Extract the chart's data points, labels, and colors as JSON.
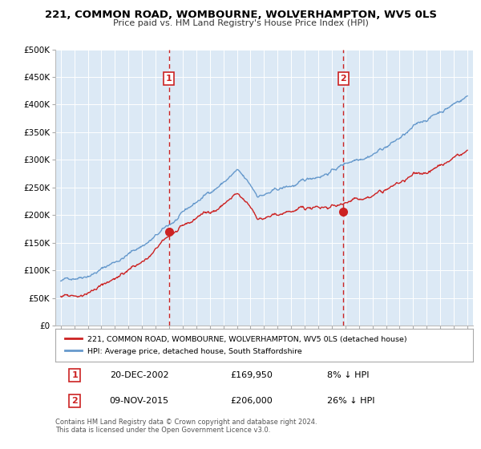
{
  "title": "221, COMMON ROAD, WOMBOURNE, WOLVERHAMPTON, WV5 0LS",
  "subtitle": "Price paid vs. HM Land Registry's House Price Index (HPI)",
  "ylabel_ticks": [
    "£0",
    "£50K",
    "£100K",
    "£150K",
    "£200K",
    "£250K",
    "£300K",
    "£350K",
    "£400K",
    "£450K",
    "£500K"
  ],
  "ytick_values": [
    0,
    50000,
    100000,
    150000,
    200000,
    250000,
    300000,
    350000,
    400000,
    450000,
    500000
  ],
  "ylim": [
    0,
    500000
  ],
  "hpi_color": "#6699cc",
  "price_color": "#cc2222",
  "vline_color": "#cc2222",
  "background_color": "#dce9f5",
  "plot_bg_color": "#dce9f5",
  "grid_color": "white",
  "legend_entry1": "221, COMMON ROAD, WOMBOURNE, WOLVERHAMPTON, WV5 0LS (detached house)",
  "legend_entry2": "HPI: Average price, detached house, South Staffordshire",
  "transaction1_label": "1",
  "transaction1_date": "20-DEC-2002",
  "transaction1_price": "£169,950",
  "transaction1_hpi": "8% ↓ HPI",
  "transaction1_x": 2002.97,
  "transaction1_y": 169950,
  "transaction2_label": "2",
  "transaction2_date": "09-NOV-2015",
  "transaction2_price": "£206,000",
  "transaction2_hpi": "26% ↓ HPI",
  "transaction2_x": 2015.86,
  "transaction2_y": 206000,
  "footer": "Contains HM Land Registry data © Crown copyright and database right 2024.\nThis data is licensed under the Open Government Licence v3.0.",
  "xlim_start": 1994.6,
  "xlim_end": 2025.4
}
